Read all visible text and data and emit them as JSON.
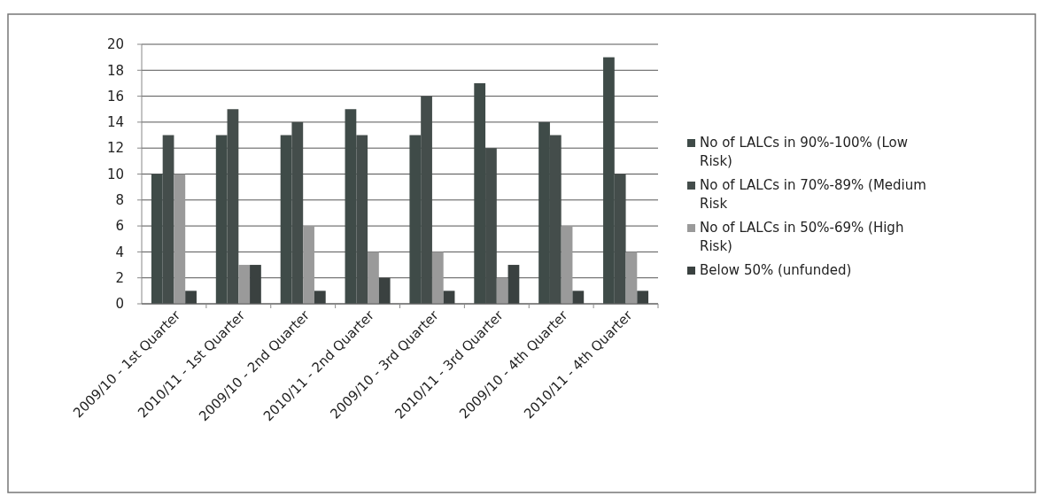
{
  "chart_data": {
    "type": "bar",
    "categories": [
      "2009/10 - 1st Quarter",
      "2010/11 - 1st Quarter",
      "2009/10 - 2nd Quarter",
      "2010/11 - 2nd Quarter",
      "2009/10 - 3rd Quarter",
      "2010/11 - 3rd Quarter",
      "2009/10 - 4th Quarter",
      "2010/11 - 4th Quarter"
    ],
    "series": [
      {
        "name": "No of LALCs in 90%-100% (Low Risk)",
        "color": "#3f4b48",
        "values": [
          10,
          13,
          13,
          15,
          13,
          17,
          14,
          19
        ]
      },
      {
        "name": "No of LALCs in 70%-89% (Medium Risk",
        "color": "#444d4b",
        "values": [
          13,
          15,
          14,
          13,
          16,
          12,
          13,
          10
        ]
      },
      {
        "name": "No of LALCs in 50%-69% (High Risk)",
        "color": "#9a9a9a",
        "values": [
          10,
          3,
          6,
          4,
          4,
          2,
          6,
          4
        ]
      },
      {
        "name": "Below 50% (unfunded)",
        "color": "#3a4140",
        "values": [
          1,
          3,
          1,
          2,
          1,
          3,
          1,
          1
        ]
      }
    ],
    "ylim": [
      0,
      20
    ],
    "yticks": [
      0,
      2,
      4,
      6,
      8,
      10,
      12,
      14,
      16,
      18,
      20
    ],
    "grid": "y",
    "legend": "right"
  }
}
